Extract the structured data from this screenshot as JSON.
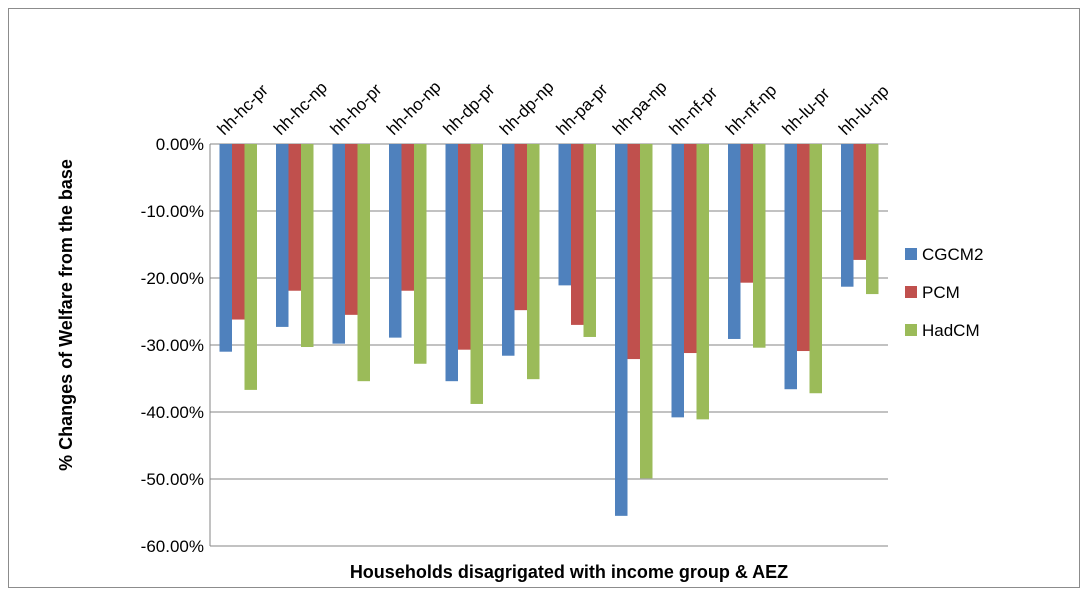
{
  "chart_data": {
    "type": "bar",
    "title": "",
    "xlabel": "Households disagrigated with income group & AEZ",
    "ylabel": "% Changes of Welfare from the base",
    "ylim": [
      -60,
      0
    ],
    "yticks": [
      "0.00%",
      "-10.00%",
      "-20.00%",
      "-30.00%",
      "-40.00%",
      "-50.00%",
      "-60.00%"
    ],
    "ytick_values": [
      0,
      -10,
      -20,
      -30,
      -40,
      -50,
      -60
    ],
    "grid": true,
    "legend_position": "right",
    "categories": [
      "hh-hc-pr",
      "hh-hc-np",
      "hh-ho-pr",
      "hh-ho-np",
      "hh-dp-pr",
      "hh-dp-np",
      "hh-pa-pr",
      "hh-pa-np",
      "hh-nf-pr",
      "hh-nf-np",
      "hh-lu-pr",
      "hh-lu-np"
    ],
    "series": [
      {
        "name": "CGCM2",
        "color": "#4f81bd",
        "values": [
          -31.0,
          -27.3,
          -29.8,
          -28.9,
          -35.4,
          -31.6,
          -21.1,
          -55.5,
          -40.8,
          -29.1,
          -36.6,
          -21.3
        ]
      },
      {
        "name": "PCM",
        "color": "#c0504d",
        "values": [
          -26.2,
          -21.9,
          -25.5,
          -21.9,
          -30.7,
          -24.8,
          -27.0,
          -32.1,
          -31.2,
          -20.7,
          -30.9,
          -17.3
        ]
      },
      {
        "name": "HadCM",
        "color": "#9bbb59",
        "values": [
          -36.7,
          -30.3,
          -35.4,
          -32.8,
          -38.8,
          -35.1,
          -28.8,
          -49.9,
          -41.1,
          -30.4,
          -37.2,
          -22.4
        ]
      }
    ]
  }
}
